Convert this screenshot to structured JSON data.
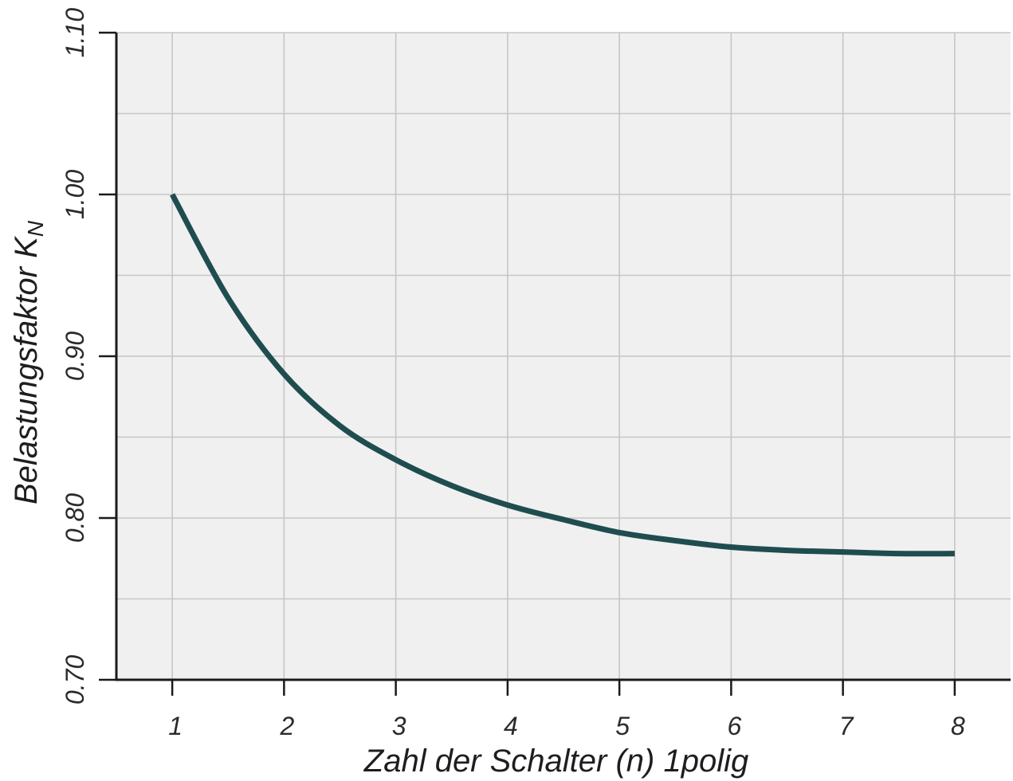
{
  "chart_data": {
    "type": "line",
    "xlabel": "Zahl der Schalter (n) 1polig",
    "ylabel": "Belastungsfaktor K",
    "ylabel_subscript": "N",
    "xlim": [
      0.5,
      8.5
    ],
    "ylim": [
      0.7,
      1.1
    ],
    "x_ticks": [
      1,
      2,
      3,
      4,
      5,
      6,
      7,
      8
    ],
    "x_tick_labels": [
      "1",
      "2",
      "3",
      "4",
      "5",
      "6",
      "7",
      "8"
    ],
    "y_ticks": [
      0.7,
      0.8,
      0.9,
      1.0,
      1.1
    ],
    "y_tick_labels": [
      "0.70",
      "0.80",
      "0.90",
      "1.00",
      "1.10"
    ],
    "y_minor_grid": [
      0.75,
      0.85,
      0.95,
      1.05
    ],
    "grid": true,
    "background": "#f0f0f0",
    "series": [
      {
        "color": "#1f4d4f",
        "x": [
          1,
          1.5,
          2,
          2.5,
          3,
          3.5,
          4,
          4.5,
          5,
          5.5,
          6,
          6.5,
          7,
          7.5,
          8
        ],
        "y": [
          1.0,
          0.936,
          0.889,
          0.857,
          0.836,
          0.82,
          0.808,
          0.799,
          0.791,
          0.786,
          0.782,
          0.78,
          0.779,
          0.778,
          0.778
        ]
      }
    ]
  }
}
